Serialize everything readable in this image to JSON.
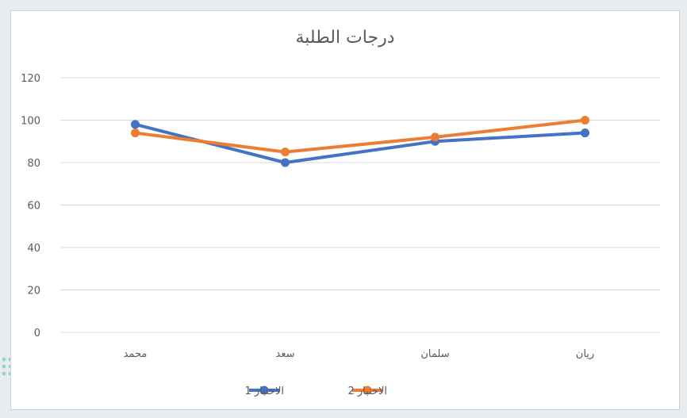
{
  "chart_data": {
    "type": "line",
    "title": "درجات الطلبة",
    "categories": [
      "محمد",
      "سعد",
      "سلمان",
      "ريان"
    ],
    "series": [
      {
        "name": "الاختبار 1",
        "color": "#4472c4",
        "values": [
          98,
          80,
          90,
          94
        ]
      },
      {
        "name": "الاختبار 2",
        "color": "#ed7d31",
        "values": [
          94,
          85,
          92,
          100
        ]
      }
    ],
    "y_ticks": [
      "0",
      "20",
      "40",
      "60",
      "80",
      "100",
      "120"
    ],
    "ylim": [
      0,
      120
    ],
    "xlabel": "",
    "ylabel": "",
    "grid": true,
    "legend_position": "bottom"
  },
  "colors": {
    "grid": "#d9d9d9",
    "text": "#595959",
    "decor_dots": "#8fd6d3"
  }
}
